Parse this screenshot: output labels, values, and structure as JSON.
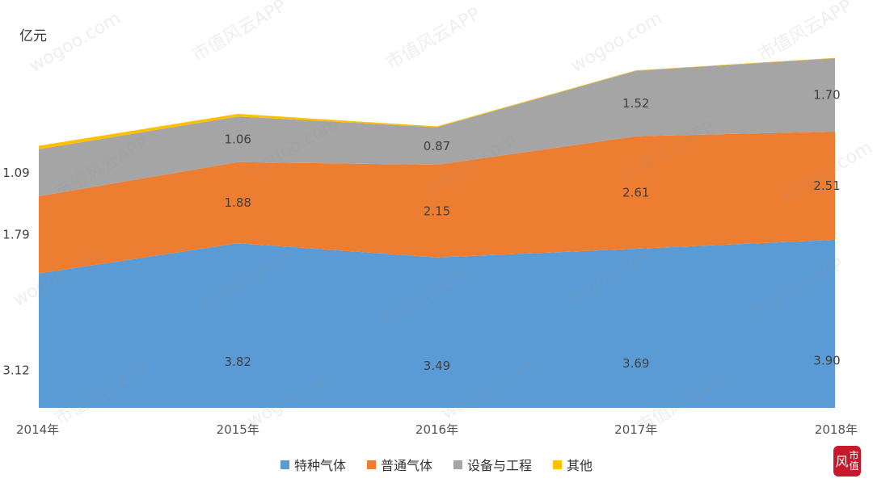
{
  "chart_data": {
    "type": "area",
    "stacked": true,
    "ylabel": "亿元",
    "categories": [
      "2014年",
      "2015年",
      "2016年",
      "2017年",
      "2018年"
    ],
    "series": [
      {
        "name": "特种气体",
        "color": "#5b9bd5",
        "values": [
          3.12,
          3.82,
          3.49,
          3.69,
          3.9
        ],
        "labels": [
          "3.12",
          "3.82",
          "3.49",
          "3.69",
          "3.90"
        ]
      },
      {
        "name": "普通气体",
        "color": "#ed7d31",
        "values": [
          1.79,
          1.88,
          2.15,
          2.61,
          2.51
        ],
        "labels": [
          "1.79",
          "1.88",
          "2.15",
          "2.61",
          "2.51"
        ]
      },
      {
        "name": "设备与工程",
        "color": "#a5a5a5",
        "values": [
          1.09,
          1.06,
          0.87,
          1.52,
          1.7
        ],
        "labels": [
          "1.09",
          "1.06",
          "0.87",
          "1.52",
          "1.70"
        ]
      },
      {
        "name": "其他",
        "color": "#ffc000",
        "values": [
          0.08,
          0.06,
          0.02,
          0.01,
          0.01
        ],
        "labels": []
      }
    ],
    "ylim": [
      0,
      8.3
    ],
    "grid": false,
    "legend": "bottom"
  },
  "watermark": {
    "text_a": "市值风云APP",
    "text_b": "wogoo.com"
  },
  "logo": {
    "text": "风市值"
  }
}
